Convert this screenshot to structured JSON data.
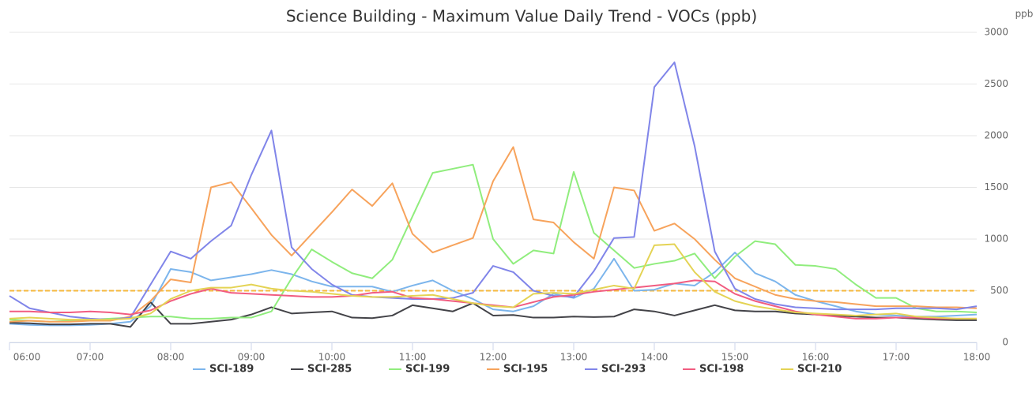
{
  "chart_data": {
    "type": "line",
    "title": "Science Building - Maximum Value Daily Trend - VOCs (ppb)",
    "y_label": "ppb",
    "categories": [
      "06:00",
      null,
      null,
      null,
      "07:00",
      null,
      null,
      null,
      "08:00",
      null,
      null,
      null,
      "09:00",
      null,
      null,
      null,
      "10:00",
      null,
      null,
      null,
      "11:00",
      null,
      null,
      null,
      "12:00",
      null,
      null,
      null,
      "13:00",
      null,
      null,
      null,
      "14:00",
      null,
      null,
      null,
      "15:00",
      null,
      null,
      null,
      "16:00",
      null,
      null,
      null,
      "17:00",
      null,
      null,
      null,
      "18:00"
    ],
    "ylim": [
      0,
      3000
    ],
    "yticks": [
      0,
      500,
      1000,
      1500,
      2000,
      2500,
      3000
    ],
    "grid": true,
    "threshold": {
      "value": 500,
      "color": "#f5b83d"
    },
    "series": [
      {
        "name": "SCI-189",
        "color": "#7cb5ec",
        "values": [
          180,
          170,
          165,
          165,
          170,
          180,
          200,
          350,
          710,
          680,
          600,
          630,
          660,
          700,
          660,
          590,
          540,
          540,
          540,
          490,
          550,
          600,
          500,
          420,
          320,
          300,
          350,
          470,
          430,
          520,
          810,
          500,
          510,
          570,
          550,
          680,
          870,
          670,
          590,
          460,
          400,
          350,
          300,
          270,
          260,
          250,
          250,
          260,
          270
        ]
      },
      {
        "name": "SCI-285",
        "color": "#434348",
        "values": [
          190,
          185,
          175,
          175,
          180,
          180,
          150,
          390,
          180,
          180,
          200,
          220,
          270,
          340,
          280,
          290,
          300,
          240,
          235,
          260,
          360,
          330,
          300,
          380,
          260,
          265,
          240,
          240,
          250,
          245,
          250,
          320,
          300,
          260,
          310,
          360,
          310,
          300,
          300,
          280,
          270,
          260,
          250,
          240,
          240,
          230,
          220,
          215,
          215
        ]
      },
      {
        "name": "SCI-199",
        "color": "#90ed7d",
        "values": [
          220,
          210,
          200,
          210,
          220,
          230,
          240,
          250,
          250,
          230,
          230,
          240,
          240,
          300,
          620,
          900,
          780,
          670,
          620,
          800,
          1220,
          1640,
          1680,
          1720,
          1000,
          760,
          890,
          860,
          1650,
          1060,
          890,
          720,
          760,
          790,
          860,
          620,
          830,
          980,
          950,
          750,
          740,
          710,
          560,
          430,
          430,
          330,
          300,
          300,
          290
        ]
      },
      {
        "name": "SCI-195",
        "color": "#f7a35c",
        "values": [
          200,
          210,
          200,
          200,
          210,
          210,
          250,
          400,
          610,
          580,
          1500,
          1550,
          1300,
          1040,
          840,
          1050,
          1260,
          1480,
          1320,
          1540,
          1050,
          870,
          940,
          1010,
          1560,
          1890,
          1190,
          1160,
          970,
          810,
          1500,
          1470,
          1080,
          1150,
          1000,
          800,
          620,
          540,
          460,
          420,
          400,
          390,
          370,
          350,
          350,
          350,
          340,
          340,
          330
        ]
      },
      {
        "name": "SCI-293",
        "color": "#8085e9",
        "values": [
          450,
          330,
          290,
          250,
          230,
          220,
          240,
          560,
          880,
          810,
          980,
          1130,
          1620,
          2050,
          920,
          710,
          560,
          460,
          440,
          430,
          420,
          420,
          430,
          480,
          740,
          680,
          500,
          450,
          440,
          690,
          1010,
          1020,
          2470,
          2710,
          1900,
          880,
          520,
          420,
          370,
          340,
          330,
          320,
          320,
          320,
          330,
          330,
          330,
          320,
          350
        ]
      },
      {
        "name": "SCI-198",
        "color": "#f15c80",
        "values": [
          300,
          300,
          290,
          290,
          300,
          290,
          270,
          310,
          400,
          470,
          520,
          480,
          470,
          460,
          450,
          440,
          440,
          450,
          480,
          490,
          430,
          420,
          400,
          380,
          360,
          340,
          390,
          440,
          460,
          490,
          510,
          530,
          550,
          570,
          600,
          590,
          470,
          400,
          350,
          300,
          270,
          250,
          230,
          230,
          240,
          240,
          230,
          230,
          230
        ]
      },
      {
        "name": "SCI-210",
        "color": "#e4d354",
        "values": [
          230,
          240,
          230,
          220,
          220,
          220,
          230,
          280,
          420,
          500,
          530,
          530,
          560,
          520,
          500,
          490,
          470,
          450,
          440,
          440,
          450,
          460,
          420,
          380,
          350,
          340,
          470,
          480,
          470,
          510,
          550,
          520,
          940,
          950,
          680,
          490,
          400,
          350,
          320,
          290,
          280,
          270,
          260,
          270,
          280,
          250,
          240,
          230,
          230
        ]
      }
    ]
  }
}
